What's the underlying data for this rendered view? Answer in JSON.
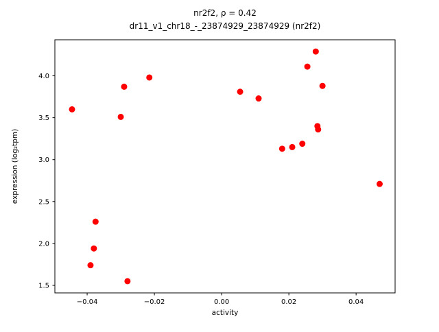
{
  "chart_data": {
    "type": "scatter",
    "title": "nr2f2, ρ = 0.42",
    "subtitle": "dr11_v1_chr18_-_23874929_23874929 (nr2f2)",
    "xlabel": "activity",
    "ylabel": "expression (log₂tpm)",
    "xlim": [
      -0.0496,
      0.0516
    ],
    "ylim": [
      1.41,
      4.43
    ],
    "xticks": [
      -0.04,
      -0.02,
      0.0,
      0.02,
      0.04
    ],
    "yticks": [
      1.5,
      2.0,
      2.5,
      3.0,
      3.5,
      4.0
    ],
    "marker_color": "#ff0000",
    "grid": false,
    "legend": "none",
    "points": [
      {
        "x": -0.0445,
        "y": 3.6
      },
      {
        "x": -0.039,
        "y": 1.74
      },
      {
        "x": -0.038,
        "y": 1.94
      },
      {
        "x": -0.0375,
        "y": 2.26
      },
      {
        "x": -0.03,
        "y": 3.51
      },
      {
        "x": -0.029,
        "y": 3.87
      },
      {
        "x": -0.028,
        "y": 1.55
      },
      {
        "x": -0.0215,
        "y": 3.98
      },
      {
        "x": 0.0055,
        "y": 3.81
      },
      {
        "x": 0.011,
        "y": 3.73
      },
      {
        "x": 0.018,
        "y": 3.13
      },
      {
        "x": 0.021,
        "y": 3.15
      },
      {
        "x": 0.024,
        "y": 3.19
      },
      {
        "x": 0.0255,
        "y": 4.11
      },
      {
        "x": 0.028,
        "y": 4.29
      },
      {
        "x": 0.0285,
        "y": 3.4
      },
      {
        "x": 0.0287,
        "y": 3.36
      },
      {
        "x": 0.03,
        "y": 3.88
      },
      {
        "x": 0.047,
        "y": 2.71
      }
    ]
  }
}
